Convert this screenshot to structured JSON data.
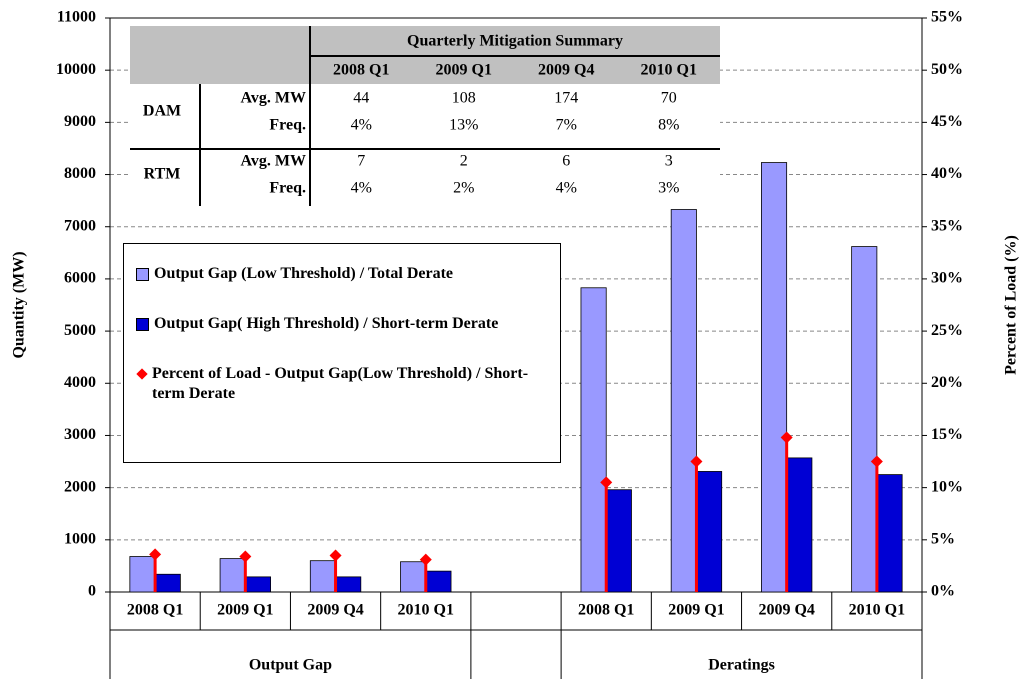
{
  "chart_data": {
    "type": "bar",
    "categories": [
      "2008 Q1",
      "2009 Q1",
      "2009 Q4",
      "2010 Q1",
      null,
      "2008 Q1",
      "2009 Q1",
      "2009 Q4",
      "2010 Q1"
    ],
    "groups": [
      "Output Gap",
      "Deratings"
    ],
    "ylabel": "Quantity (MW)",
    "y2label": "Percent of Load (%)",
    "ylim": [
      0,
      11000
    ],
    "yticks": [
      0,
      1000,
      2000,
      3000,
      4000,
      5000,
      6000,
      7000,
      8000,
      9000,
      10000,
      11000
    ],
    "y2lim": [
      0,
      55
    ],
    "y2ticks": [
      {
        "value": 0,
        "label": "0%"
      },
      {
        "value": 5,
        "label": "5%"
      },
      {
        "value": 10,
        "label": "10%"
      },
      {
        "value": 15,
        "label": "15%"
      },
      {
        "value": 20,
        "label": "20%"
      },
      {
        "value": 25,
        "label": "25%"
      },
      {
        "value": 30,
        "label": "30%"
      },
      {
        "value": 35,
        "label": "35%"
      },
      {
        "value": 40,
        "label": "40%"
      },
      {
        "value": 45,
        "label": "45%"
      },
      {
        "value": 50,
        "label": "50%"
      },
      {
        "value": 55,
        "label": "55%"
      }
    ],
    "grid": true,
    "series": [
      {
        "name": "Output Gap (Low Threshold) / Total Derate",
        "color": "#9999ff",
        "values": [
          680,
          640,
          600,
          580,
          null,
          5830,
          7330,
          8230,
          6620
        ]
      },
      {
        "name": "Output Gap( High Threshold) / Short-term Derate",
        "color": "#0000d4",
        "values": [
          340,
          290,
          290,
          400,
          null,
          1960,
          2310,
          2570,
          2250
        ]
      },
      {
        "name": "Percent of Load - Output Gap(Low Threshold) / Short-term Derate",
        "color": "#ff0000",
        "axis": "y2",
        "values": [
          3.6,
          3.4,
          3.5,
          3.1,
          null,
          10.5,
          12.5,
          14.8,
          12.5
        ]
      }
    ]
  },
  "table": {
    "title": "Quarterly Mitigation Summary",
    "columns": [
      "2008 Q1",
      "2009 Q1",
      "2009 Q4",
      "2010 Q1"
    ],
    "groups": [
      {
        "name": "DAM",
        "rows": [
          {
            "label": "Avg. MW",
            "cells": [
              "44",
              "108",
              "174",
              "70"
            ]
          },
          {
            "label": "Freq.",
            "cells": [
              "4%",
              "13%",
              "7%",
              "8%"
            ]
          }
        ]
      },
      {
        "name": "RTM",
        "rows": [
          {
            "label": "Avg. MW",
            "cells": [
              "7",
              "2",
              "6",
              "3"
            ]
          },
          {
            "label": "Freq.",
            "cells": [
              "4%",
              "2%",
              "4%",
              "3%"
            ]
          }
        ]
      }
    ]
  }
}
